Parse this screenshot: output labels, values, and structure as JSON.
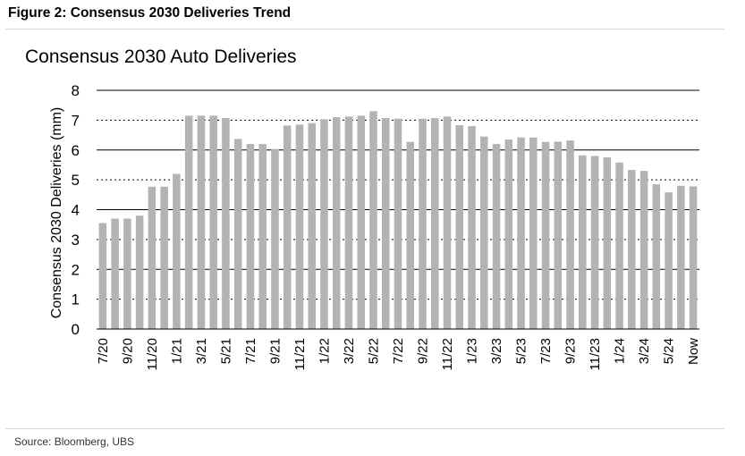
{
  "figure_title": "Figure 2: Consensus 2030 Deliveries Trend",
  "source": "Source: Bloomberg, UBS",
  "colors": {
    "bar": "#b3b3b3",
    "gridline": "#000000",
    "dotted": "#000000"
  },
  "chart_data": {
    "type": "bar",
    "title": "Consensus 2030 Auto Deliveries",
    "xlabel": "",
    "ylabel": "Consensus 2030 Deliveries (mm)",
    "ylim": [
      0,
      8
    ],
    "yticks": [
      0,
      1,
      2,
      3,
      4,
      5,
      6,
      7,
      8
    ],
    "grid": true,
    "categories": [
      "7/20",
      "8/20",
      "9/20",
      "10/20",
      "11/20",
      "12/20",
      "1/21",
      "2/21",
      "3/21",
      "4/21",
      "5/21",
      "6/21",
      "7/21",
      "8/21",
      "9/21",
      "10/21",
      "11/21",
      "12/21",
      "1/22",
      "2/22",
      "3/22",
      "4/22",
      "5/22",
      "6/22",
      "7/22",
      "8/22",
      "9/22",
      "10/22",
      "11/22",
      "12/22",
      "1/23",
      "2/23",
      "3/23",
      "4/23",
      "5/23",
      "6/23",
      "7/23",
      "8/23",
      "9/23",
      "10/23",
      "11/23",
      "12/23",
      "1/24",
      "2/24",
      "3/24",
      "4/24",
      "5/24",
      "6/24",
      "Now"
    ],
    "xtick_labels": [
      "7/20",
      "9/20",
      "11/20",
      "1/21",
      "3/21",
      "5/21",
      "7/21",
      "9/21",
      "11/21",
      "1/22",
      "3/22",
      "5/22",
      "7/22",
      "9/22",
      "11/22",
      "1/23",
      "3/23",
      "5/23",
      "7/23",
      "9/23",
      "11/23",
      "1/24",
      "3/24",
      "5/24",
      "Now"
    ],
    "values": [
      3.55,
      3.7,
      3.7,
      3.8,
      4.77,
      4.77,
      5.2,
      7.15,
      7.15,
      7.15,
      7.07,
      6.37,
      6.2,
      6.2,
      6.03,
      6.82,
      6.85,
      6.9,
      7.03,
      7.1,
      7.12,
      7.15,
      7.3,
      7.07,
      7.05,
      6.27,
      7.05,
      7.07,
      7.12,
      6.83,
      6.8,
      6.45,
      6.2,
      6.35,
      6.42,
      6.42,
      6.27,
      6.28,
      6.32,
      5.82,
      5.8,
      5.75,
      5.58,
      5.33,
      5.3,
      4.85,
      4.58,
      4.8,
      4.78
    ]
  }
}
